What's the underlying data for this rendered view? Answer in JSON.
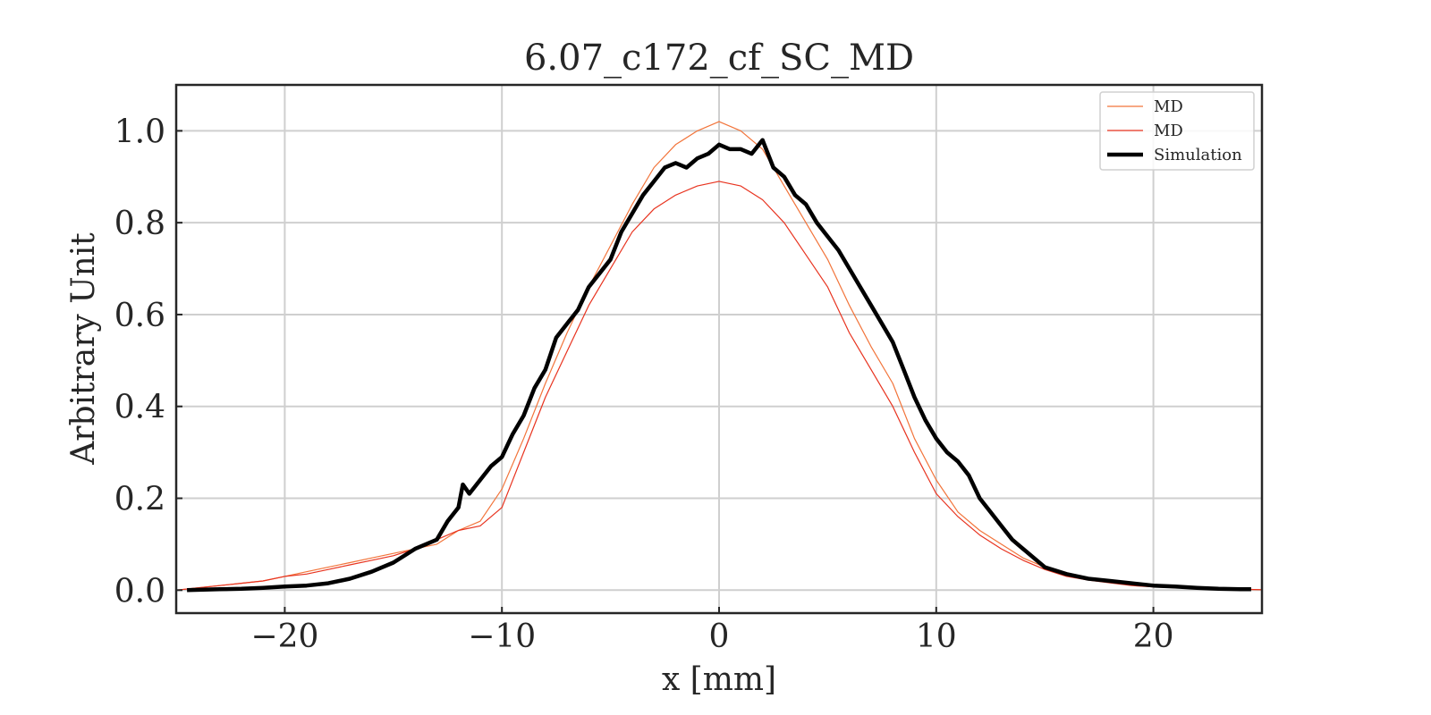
{
  "chart_data": {
    "type": "line",
    "title": "6.07_c172_cf_SC_MD",
    "xlabel": "x [mm]",
    "ylabel": "Arbitrary Unit",
    "xlim": [
      -25,
      25
    ],
    "ylim": [
      -0.05,
      1.1
    ],
    "xticks": [
      -20,
      -10,
      0,
      10,
      20
    ],
    "xtick_labels": [
      "−20",
      "−10",
      "0",
      "10",
      "20"
    ],
    "yticks": [
      0.0,
      0.2,
      0.4,
      0.6,
      0.8,
      1.0
    ],
    "ytick_labels": [
      "0.0",
      "0.2",
      "0.4",
      "0.6",
      "0.8",
      "1.0"
    ],
    "grid": true,
    "legend_position": "top-right",
    "series": [
      {
        "name": "MD",
        "color": "#f2743a",
        "line_width": 1.2,
        "x": [
          -25,
          -24,
          -23,
          -22,
          -21,
          -20,
          -19,
          -18,
          -17,
          -16,
          -15,
          -14,
          -13,
          -12,
          -11,
          -10,
          -9,
          -8,
          -7,
          -6,
          -5,
          -4,
          -3,
          -2,
          -1,
          0,
          1,
          2,
          3,
          4,
          5,
          6,
          7,
          8,
          9,
          10,
          11,
          12,
          13,
          14,
          15,
          16,
          17,
          18,
          19,
          20,
          21,
          22,
          23,
          24,
          25
        ],
        "y": [
          0.0,
          0.005,
          0.01,
          0.015,
          0.02,
          0.03,
          0.04,
          0.05,
          0.06,
          0.07,
          0.08,
          0.09,
          0.1,
          0.13,
          0.15,
          0.22,
          0.33,
          0.45,
          0.56,
          0.66,
          0.75,
          0.84,
          0.92,
          0.97,
          1.0,
          1.02,
          1.0,
          0.96,
          0.88,
          0.8,
          0.72,
          0.62,
          0.53,
          0.45,
          0.33,
          0.24,
          0.17,
          0.13,
          0.1,
          0.07,
          0.05,
          0.035,
          0.025,
          0.02,
          0.012,
          0.008,
          0.006,
          0.004,
          0.003,
          0.002,
          0.001
        ]
      },
      {
        "name": "MD",
        "color": "#e8331f",
        "line_width": 1.2,
        "x": [
          -25,
          -24,
          -23,
          -22,
          -21,
          -20,
          -19,
          -18,
          -17,
          -16,
          -15,
          -14,
          -13,
          -12,
          -11,
          -10,
          -9,
          -8,
          -7,
          -6,
          -5,
          -4,
          -3,
          -2,
          -1,
          0,
          1,
          2,
          3,
          4,
          5,
          6,
          7,
          8,
          9,
          10,
          11,
          12,
          13,
          14,
          15,
          16,
          17,
          18,
          19,
          20,
          21,
          22,
          23,
          24,
          25
        ],
        "y": [
          0.0,
          0.005,
          0.01,
          0.015,
          0.02,
          0.03,
          0.035,
          0.045,
          0.055,
          0.065,
          0.075,
          0.09,
          0.11,
          0.13,
          0.14,
          0.18,
          0.3,
          0.42,
          0.52,
          0.62,
          0.7,
          0.78,
          0.83,
          0.86,
          0.88,
          0.89,
          0.88,
          0.85,
          0.8,
          0.73,
          0.66,
          0.56,
          0.48,
          0.4,
          0.3,
          0.21,
          0.16,
          0.12,
          0.09,
          0.065,
          0.045,
          0.03,
          0.022,
          0.016,
          0.01,
          0.007,
          0.005,
          0.004,
          0.003,
          0.002,
          0.001
        ]
      },
      {
        "name": "Simulation",
        "color": "#000000",
        "line_width": 4.5,
        "x": [
          -24.5,
          -23,
          -22,
          -21,
          -20,
          -19,
          -18,
          -17,
          -16,
          -15,
          -14,
          -13,
          -12.5,
          -12,
          -11.8,
          -11.5,
          -11,
          -10.5,
          -10,
          -9.5,
          -9,
          -8.5,
          -8,
          -7.5,
          -7,
          -6.5,
          -6,
          -5.5,
          -5,
          -4.5,
          -4,
          -3.5,
          -3,
          -2.5,
          -2,
          -1.5,
          -1,
          -0.5,
          0,
          0.5,
          1,
          1.5,
          2,
          2.5,
          3,
          3.5,
          4,
          4.5,
          5,
          5.5,
          6,
          6.5,
          7,
          7.5,
          8,
          8.5,
          9,
          9.5,
          10,
          10.5,
          11,
          11.5,
          12,
          12.5,
          13,
          13.5,
          14,
          15,
          16,
          17,
          18,
          19,
          20,
          21,
          22,
          23,
          24,
          24.5
        ],
        "y": [
          0.0,
          0.002,
          0.003,
          0.005,
          0.008,
          0.01,
          0.015,
          0.025,
          0.04,
          0.06,
          0.09,
          0.11,
          0.15,
          0.18,
          0.23,
          0.21,
          0.24,
          0.27,
          0.29,
          0.34,
          0.38,
          0.44,
          0.48,
          0.55,
          0.58,
          0.61,
          0.66,
          0.69,
          0.72,
          0.78,
          0.82,
          0.86,
          0.89,
          0.92,
          0.93,
          0.92,
          0.94,
          0.95,
          0.97,
          0.96,
          0.96,
          0.95,
          0.98,
          0.92,
          0.9,
          0.86,
          0.84,
          0.8,
          0.77,
          0.74,
          0.7,
          0.66,
          0.62,
          0.58,
          0.54,
          0.48,
          0.42,
          0.37,
          0.33,
          0.3,
          0.28,
          0.25,
          0.2,
          0.17,
          0.14,
          0.11,
          0.09,
          0.05,
          0.035,
          0.025,
          0.02,
          0.015,
          0.01,
          0.008,
          0.005,
          0.003,
          0.002,
          0.002
        ]
      }
    ]
  }
}
